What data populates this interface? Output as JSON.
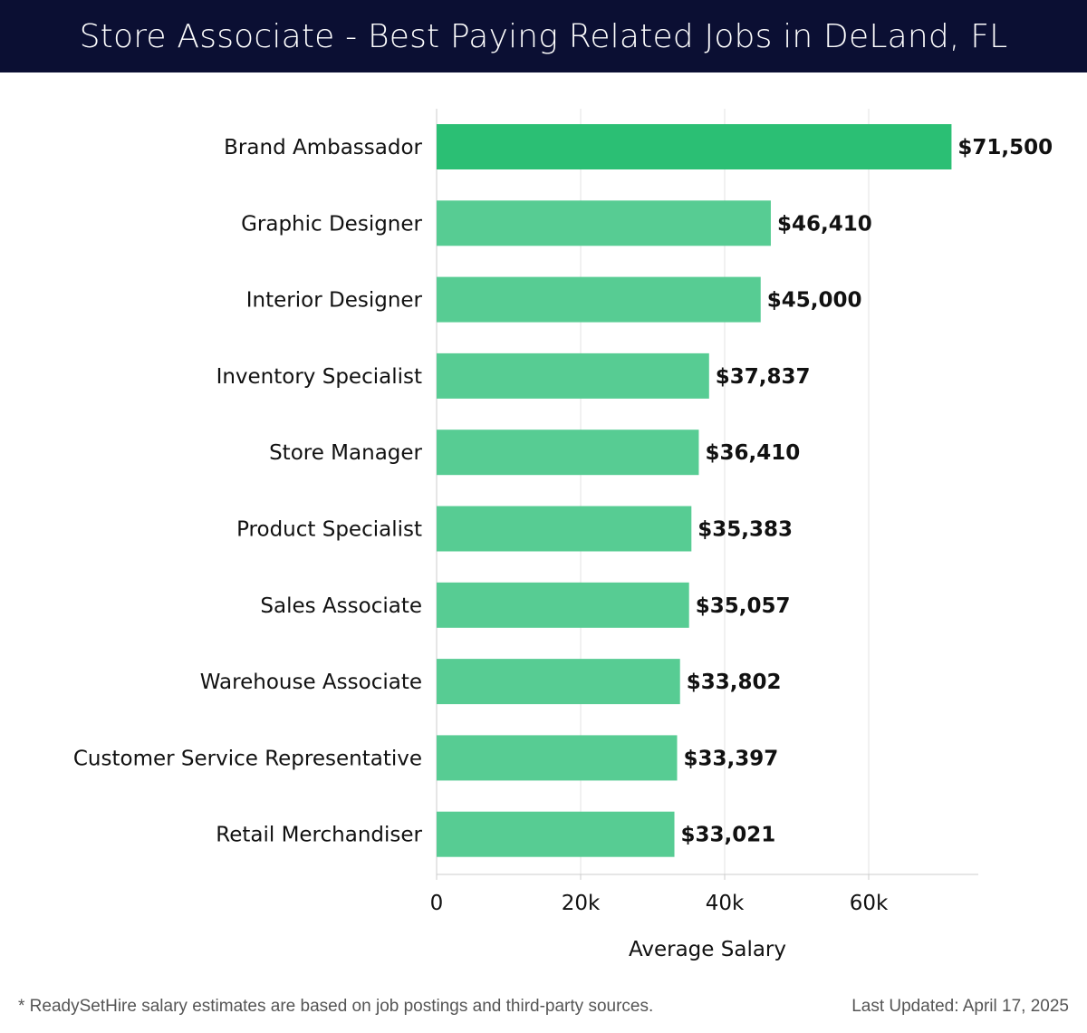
{
  "header": {
    "title": "Store Associate - Best Paying Related Jobs in DeLand, FL"
  },
  "chart_data": {
    "type": "bar",
    "orientation": "horizontal",
    "title": "Store Associate - Best Paying Related Jobs in DeLand, FL",
    "xlabel": "Average Salary",
    "ylabel": "",
    "xlim": [
      0,
      75000
    ],
    "x_ticks": [
      0,
      20000,
      40000,
      60000
    ],
    "x_tick_labels": [
      "0",
      "20k",
      "40k",
      "60k"
    ],
    "grid": "vertical",
    "categories": [
      "Brand Ambassador",
      "Graphic Designer",
      "Interior Designer",
      "Inventory Specialist",
      "Store Manager",
      "Product Specialist",
      "Sales Associate",
      "Warehouse Associate",
      "Customer Service Representative",
      "Retail Merchandiser"
    ],
    "values": [
      71500,
      46410,
      45000,
      37837,
      36410,
      35383,
      35057,
      33802,
      33397,
      33021
    ],
    "value_labels": [
      "$71,500",
      "$46,410",
      "$45,000",
      "$37,837",
      "$36,410",
      "$35,383",
      "$35,057",
      "$33,802",
      "$33,397",
      "$33,021"
    ],
    "colors": {
      "top_bar": "#2bbf74",
      "bar": "#57cc93",
      "grid": "#e3e3e3",
      "axis": "#cccccc",
      "text": "#111111"
    }
  },
  "footer": {
    "note": "* ReadySetHire salary estimates are based on job postings and third-party sources.",
    "updated": "Last Updated: April 17, 2025"
  }
}
